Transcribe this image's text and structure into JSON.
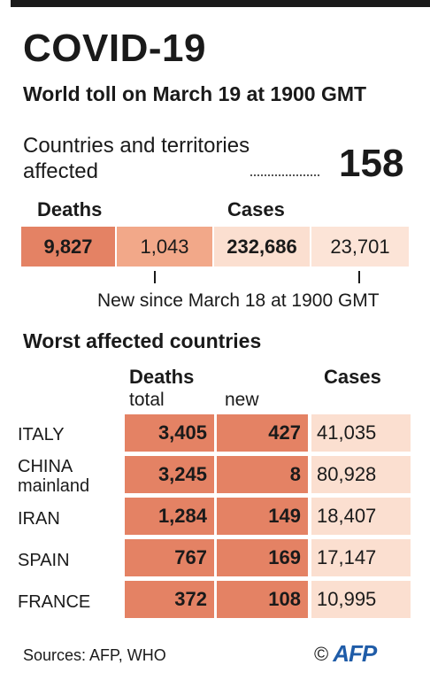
{
  "title": "COVID-19",
  "subtitle": "World toll on March 19 at 1900 GMT",
  "affected": {
    "label": "Countries and territories affected",
    "value": "158"
  },
  "world": {
    "deaths_label": "Deaths",
    "cases_label": "Cases",
    "deaths_total": "9,827",
    "deaths_new": "1,043",
    "cases_total": "232,686",
    "cases_new": "23,701",
    "new_note": "New since March 18 at 1900 GMT"
  },
  "countries_section": {
    "title": "Worst affected countries",
    "deaths_label": "Deaths",
    "total_label": "total",
    "new_label": "new",
    "cases_label": "Cases"
  },
  "chart_data": {
    "type": "table",
    "title": "Worst affected countries",
    "columns": [
      "Deaths total",
      "Deaths new",
      "Cases"
    ],
    "rows": [
      {
        "country": "ITALY",
        "deaths_total": "3,405",
        "deaths_new": "427",
        "cases": "41,035"
      },
      {
        "country": "CHINA mainland",
        "deaths_total": "3,245",
        "deaths_new": "8",
        "cases": "80,928"
      },
      {
        "country": "IRAN",
        "deaths_total": "1,284",
        "deaths_new": "149",
        "cases": "18,407"
      },
      {
        "country": "SPAIN",
        "deaths_total": "767",
        "deaths_new": "169",
        "cases": "17,147"
      },
      {
        "country": "FRANCE",
        "deaths_total": "372",
        "deaths_new": "108",
        "cases": "10,995"
      }
    ]
  },
  "colors": {
    "deaths_total": "#e48264",
    "deaths_new": "#f2a889",
    "cases": "#fbdfd0",
    "logo": "#1f5ca8"
  },
  "footer": {
    "sources": "Sources: AFP, WHO",
    "copyright": "©",
    "logo": "AFP"
  }
}
